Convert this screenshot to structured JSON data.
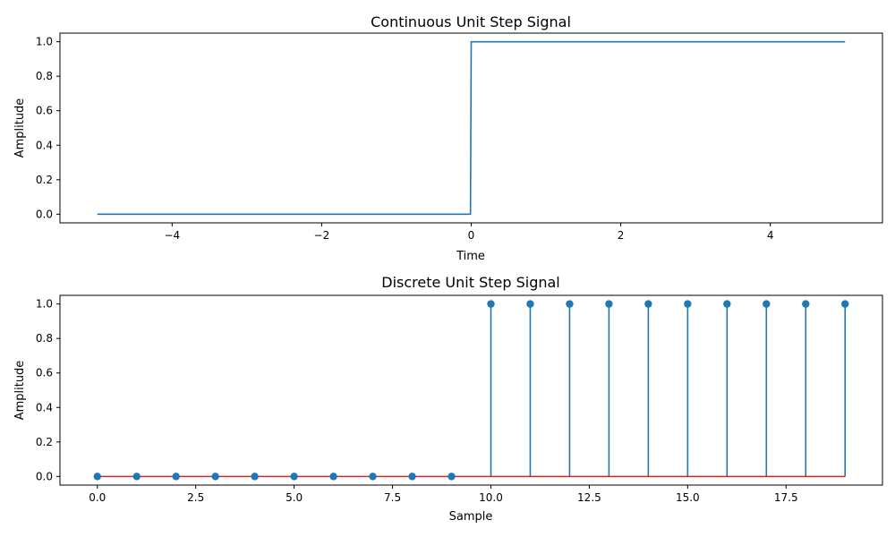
{
  "chart_data": [
    {
      "type": "line",
      "title": "Continuous Unit Step Signal",
      "xlabel": "Time",
      "ylabel": "Amplitude",
      "xlim": [
        -5.5,
        5.5
      ],
      "ylim": [
        -0.05,
        1.05
      ],
      "xticks": [
        -4,
        -2,
        0,
        2,
        4
      ],
      "xtick_labels": [
        "−4",
        "−2",
        "0",
        "2",
        "4"
      ],
      "yticks": [
        0.0,
        0.2,
        0.4,
        0.6,
        0.8,
        1.0
      ],
      "ytick_labels": [
        "0.0",
        "0.2",
        "0.4",
        "0.6",
        "0.8",
        "1.0"
      ],
      "grid": false,
      "color": "#1f77b4",
      "series": [
        {
          "x": [
            -5,
            -0.01,
            0,
            5
          ],
          "y": [
            0,
            0,
            1,
            1
          ]
        }
      ]
    },
    {
      "type": "stem",
      "title": "Discrete Unit Step Signal",
      "xlabel": "Sample",
      "ylabel": "Amplitude",
      "xlim": [
        -0.95,
        19.95
      ],
      "ylim": [
        -0.05,
        1.05
      ],
      "xticks": [
        0,
        2.5,
        5,
        7.5,
        10,
        12.5,
        15,
        17.5
      ],
      "xtick_labels": [
        "0.0",
        "2.5",
        "5.0",
        "7.5",
        "10.0",
        "12.5",
        "15.0",
        "17.5"
      ],
      "yticks": [
        0.0,
        0.2,
        0.4,
        0.6,
        0.8,
        1.0
      ],
      "ytick_labels": [
        "0.0",
        "0.2",
        "0.4",
        "0.6",
        "0.8",
        "1.0"
      ],
      "grid": false,
      "color": "#1f77b4",
      "baseline_color": "#d62728",
      "series": [
        {
          "x": [
            0,
            1,
            2,
            3,
            4,
            5,
            6,
            7,
            8,
            9,
            10,
            11,
            12,
            13,
            14,
            15,
            16,
            17,
            18,
            19
          ],
          "y": [
            0,
            0,
            0,
            0,
            0,
            0,
            0,
            0,
            0,
            0,
            1,
            1,
            1,
            1,
            1,
            1,
            1,
            1,
            1,
            1
          ]
        }
      ]
    }
  ]
}
